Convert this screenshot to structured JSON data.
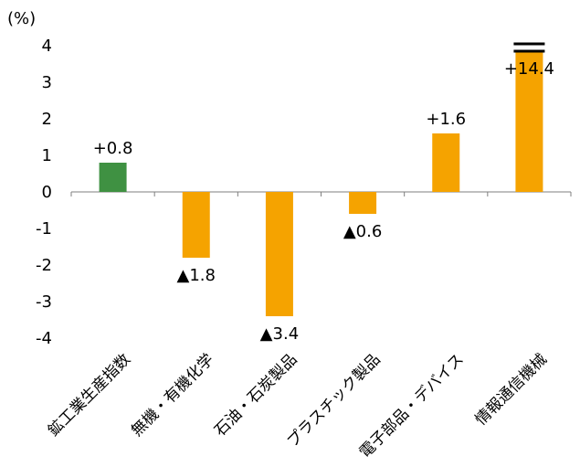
{
  "chart_data": {
    "type": "bar",
    "title": "",
    "unit_label": "(%)",
    "xlabel": "",
    "ylabel": "",
    "ylim": [
      -4,
      4
    ],
    "yticks": [
      4,
      3,
      2,
      1,
      0,
      -1,
      -2,
      -3,
      -4
    ],
    "ytick_labels": [
      "4",
      "3",
      "2",
      "1",
      "0",
      "-1",
      "-2",
      "-3",
      "-4"
    ],
    "categories": [
      "鉱工業生産指数",
      "無機・有機化学",
      "石油・石炭製品",
      "プラスチック製品",
      "電子部品・デバイス",
      "情報通信機械"
    ],
    "values": [
      0.8,
      -1.8,
      -3.4,
      -0.6,
      1.6,
      14.4
    ],
    "data_labels": [
      "+0.8",
      "▲1.8",
      "▲3.4",
      "▲0.6",
      "+1.6",
      "+14.4"
    ],
    "colors": [
      "#3f9142",
      "#f5a300",
      "#f5a300",
      "#f5a300",
      "#f5a300",
      "#f5a300"
    ],
    "axis_break_on": "情報通信機械",
    "grid": false,
    "legend": "none"
  }
}
